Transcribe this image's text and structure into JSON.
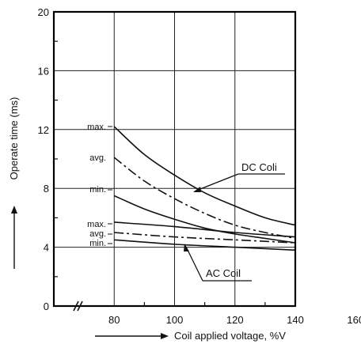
{
  "chart_data": {
    "type": "line",
    "ylabel": "Operate time (ms)",
    "xlabel": "Coil applied voltage, %V",
    "x_ticks": [
      "80",
      "100",
      "120",
      "140",
      "160"
    ],
    "y_ticks": [
      "0",
      "4",
      "8",
      "12",
      "16",
      "20"
    ],
    "xlim": [
      60,
      160
    ],
    "ylim": [
      0,
      20
    ],
    "grid": true,
    "series": [
      {
        "name": "max.",
        "group": "DC Coil",
        "style": "solid",
        "points": [
          [
            80,
            12.2
          ],
          [
            90,
            10.3
          ],
          [
            100,
            8.9
          ],
          [
            110,
            7.7
          ],
          [
            120,
            6.8
          ],
          [
            130,
            6.0
          ],
          [
            140,
            5.5
          ]
        ]
      },
      {
        "name": "avg.",
        "group": "DC Coil",
        "style": "dashdot",
        "points": [
          [
            80,
            10.1
          ],
          [
            90,
            8.5
          ],
          [
            100,
            7.3
          ],
          [
            110,
            6.3
          ],
          [
            120,
            5.5
          ],
          [
            130,
            5.0
          ],
          [
            140,
            4.6
          ]
        ]
      },
      {
        "name": "min.",
        "group": "DC Coil",
        "style": "solid",
        "points": [
          [
            80,
            7.5
          ],
          [
            90,
            6.6
          ],
          [
            100,
            5.9
          ],
          [
            110,
            5.3
          ],
          [
            120,
            4.9
          ],
          [
            130,
            4.6
          ],
          [
            140,
            4.3
          ]
        ]
      },
      {
        "name": "max.",
        "group": "AC Coil",
        "style": "solid",
        "points": [
          [
            80,
            5.7
          ],
          [
            100,
            5.4
          ],
          [
            120,
            5.0
          ],
          [
            140,
            4.7
          ]
        ]
      },
      {
        "name": "avg.",
        "group": "AC Coil",
        "style": "dashdot",
        "points": [
          [
            80,
            5.0
          ],
          [
            100,
            4.7
          ],
          [
            120,
            4.5
          ],
          [
            140,
            4.3
          ]
        ]
      },
      {
        "name": "min.",
        "group": "AC Coil",
        "style": "solid",
        "points": [
          [
            80,
            4.5
          ],
          [
            100,
            4.2
          ],
          [
            120,
            4.0
          ],
          [
            140,
            3.8
          ]
        ]
      }
    ],
    "annotations": [
      "max.",
      "avg.",
      "min.",
      "max.",
      "avg.",
      "min."
    ],
    "callouts": [
      "DC Coli",
      "AC Coil"
    ]
  }
}
